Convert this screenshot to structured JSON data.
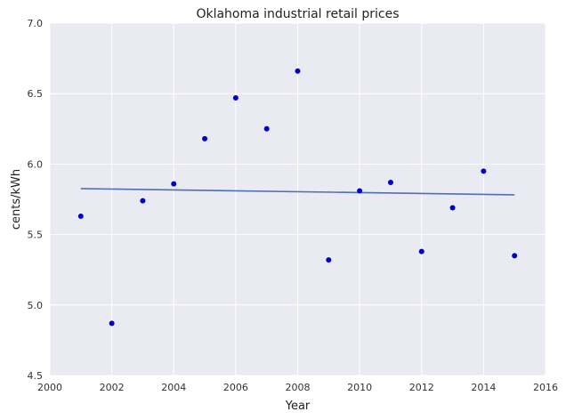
{
  "chart_data": {
    "type": "scatter",
    "title": "Oklahoma   industrial retail prices",
    "xlabel": "Year",
    "ylabel": "cents/kWh",
    "xlim": [
      2000,
      2016
    ],
    "ylim": [
      4.5,
      7.0
    ],
    "x_ticks": [
      "2000",
      "2002",
      "2004",
      "2006",
      "2008",
      "2010",
      "2012",
      "2014",
      "2016"
    ],
    "y_ticks": [
      "4.5",
      "5.0",
      "5.5",
      "6.0",
      "6.5",
      "7.0"
    ],
    "x_tick_values": [
      2000,
      2002,
      2004,
      2006,
      2008,
      2010,
      2012,
      2014,
      2016
    ],
    "y_tick_values": [
      4.5,
      5.0,
      5.5,
      6.0,
      6.5,
      7.0
    ],
    "grid": true,
    "series": [
      {
        "type": "scatter",
        "color": "#0000cc",
        "x": [
          2001,
          2002,
          2003,
          2004,
          2005,
          2006,
          2007,
          2008,
          2009,
          2010,
          2011,
          2012,
          2013,
          2014,
          2015
        ],
        "y": [
          5.63,
          4.87,
          5.74,
          5.86,
          6.18,
          6.47,
          6.25,
          6.66,
          5.32,
          5.81,
          5.87,
          5.38,
          5.69,
          5.95,
          5.35
        ]
      },
      {
        "type": "line",
        "color": "#4c72b0",
        "x": [
          2001,
          2015
        ],
        "y": [
          5.826,
          5.782
        ]
      }
    ]
  },
  "colors": {
    "plot_background": "#eaeaf2",
    "grid": "#ffffff"
  }
}
